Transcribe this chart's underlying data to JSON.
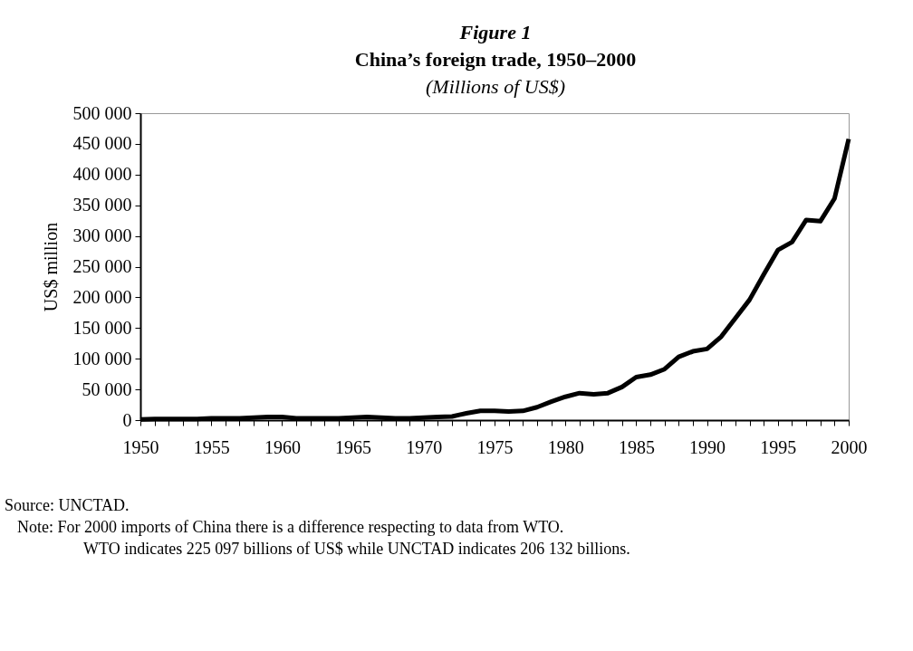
{
  "chart_data": {
    "type": "line",
    "title": "China’s foreign trade, 1950–2000",
    "subtitle": "(Millions of US$)",
    "ylabel": "US$ million",
    "annotations": [
      "Figure 1",
      "Source: UNCTAD.",
      "Note: For 2000 imports of China there is a difference respecting to data from WTO.",
      "WTO indicates 225 097 billions of US$ while UNCTAD indicates 206 132 billions."
    ],
    "x": [
      1950,
      1951,
      1952,
      1953,
      1954,
      1955,
      1956,
      1957,
      1958,
      1959,
      1960,
      1961,
      1962,
      1963,
      1964,
      1965,
      1966,
      1967,
      1968,
      1969,
      1970,
      1971,
      1972,
      1973,
      1974,
      1975,
      1976,
      1977,
      1978,
      1979,
      1980,
      1981,
      1982,
      1983,
      1984,
      1985,
      1986,
      1987,
      1988,
      1989,
      1990,
      1991,
      1992,
      1993,
      1994,
      1995,
      1996,
      1997,
      1998,
      1999,
      2000
    ],
    "series": [
      {
        "color": "#000000",
        "values": [
          1000,
          2000,
          2000,
          2000,
          2000,
          3000,
          3000,
          3000,
          4000,
          5000,
          5000,
          3000,
          3000,
          3000,
          3000,
          4000,
          5000,
          4000,
          3000,
          3000,
          4000,
          5000,
          6000,
          11000,
          15000,
          15000,
          14000,
          15000,
          21000,
          30000,
          38000,
          44000,
          42000,
          44000,
          54000,
          70000,
          74000,
          83000,
          103000,
          112000,
          116000,
          136000,
          166000,
          196000,
          237000,
          277000,
          290000,
          326000,
          324000,
          361000,
          458000
        ]
      }
    ],
    "xlim": [
      1950,
      2000
    ],
    "xticks": [
      1950,
      {
        "value": 1951,
        "label": null
      },
      {
        "value": 1952,
        "label": null
      },
      {
        "value": 1953,
        "label": null
      },
      {
        "value": 1954,
        "label": null
      },
      1955,
      {
        "value": 1956,
        "label": null
      },
      {
        "value": 1957,
        "label": null
      },
      {
        "value": 1958,
        "label": null
      },
      {
        "value": 1959,
        "label": null
      },
      1960,
      {
        "value": 1961,
        "label": null
      },
      {
        "value": 1962,
        "label": null
      },
      {
        "value": 1963,
        "label": null
      },
      {
        "value": 1964,
        "label": null
      },
      1965,
      {
        "value": 1966,
        "label": null
      },
      {
        "value": 1967,
        "label": null
      },
      {
        "value": 1968,
        "label": null
      },
      {
        "value": 1969,
        "label": null
      },
      1970,
      {
        "value": 1971,
        "label": null
      },
      {
        "value": 1972,
        "label": null
      },
      {
        "value": 1973,
        "label": null
      },
      {
        "value": 1974,
        "label": null
      },
      1975,
      {
        "value": 1976,
        "label": null
      },
      {
        "value": 1977,
        "label": null
      },
      {
        "value": 1978,
        "label": null
      },
      {
        "value": 1979,
        "label": null
      },
      1980,
      {
        "value": 1981,
        "label": null
      },
      {
        "value": 1982,
        "label": null
      },
      {
        "value": 1983,
        "label": null
      },
      {
        "value": 1984,
        "label": null
      },
      1985,
      {
        "value": 1986,
        "label": null
      },
      {
        "value": 1987,
        "label": null
      },
      {
        "value": 1988,
        "label": null
      },
      {
        "value": 1989,
        "label": null
      },
      1990,
      {
        "value": 1991,
        "label": null
      },
      {
        "value": 1992,
        "label": null
      },
      {
        "value": 1993,
        "label": null
      },
      {
        "value": 1994,
        "label": null
      },
      1995,
      {
        "value": 1996,
        "label": null
      },
      {
        "value": 1997,
        "label": null
      },
      {
        "value": 1998,
        "label": null
      },
      {
        "value": 1999,
        "label": null
      },
      2000
    ],
    "ylim": [
      0,
      500000
    ],
    "yticks": [
      0,
      {
        "value": 50000,
        "label": "50 000"
      },
      {
        "value": 100000,
        "label": "100 000"
      },
      {
        "value": 150000,
        "label": "150 000"
      },
      {
        "value": 200000,
        "label": "200 000"
      },
      {
        "value": 250000,
        "label": "250 000"
      },
      {
        "value": 300000,
        "label": "300 000"
      },
      {
        "value": 350000,
        "label": "350 000"
      },
      {
        "value": 400000,
        "label": "400 000"
      },
      {
        "value": 450000,
        "label": "450 000"
      },
      {
        "value": 500000,
        "label": "500 000"
      }
    ],
    "grid": false,
    "marker": "none",
    "line_style": "solid"
  }
}
